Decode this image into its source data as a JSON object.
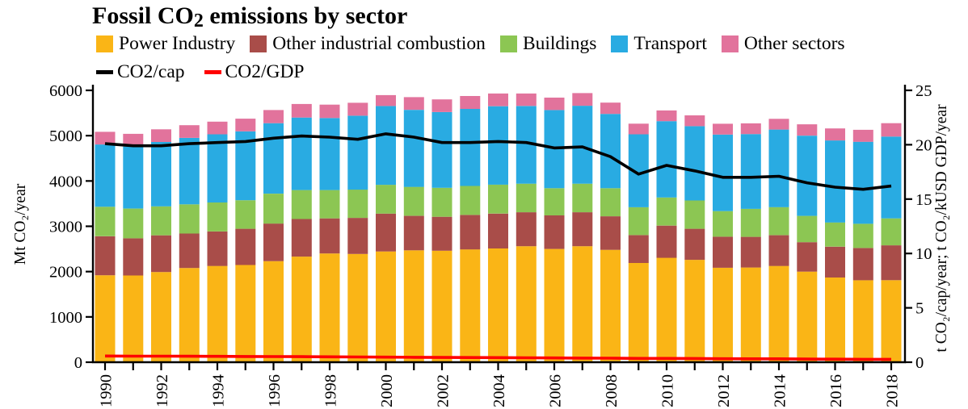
{
  "title": {
    "prefix": "Fossil CO",
    "sub": "2",
    "suffix": " emissions by sector"
  },
  "chart_data": {
    "type": "bar",
    "subtype": "stacked-bars-with-overlaid-lines",
    "title": "Fossil CO2 emissions by sector",
    "x": [
      1990,
      1991,
      1992,
      1993,
      1994,
      1995,
      1996,
      1997,
      1998,
      1999,
      2000,
      2001,
      2002,
      2003,
      2004,
      2005,
      2006,
      2007,
      2008,
      2009,
      2010,
      2011,
      2012,
      2013,
      2014,
      2015,
      2016,
      2017,
      2018
    ],
    "x_tick_label_step": 2,
    "bar_series": [
      {
        "name": "Power Industry",
        "color": "#FAB516",
        "values": [
          1920,
          1915,
          1990,
          2080,
          2125,
          2145,
          2230,
          2330,
          2400,
          2390,
          2445,
          2470,
          2460,
          2490,
          2510,
          2560,
          2500,
          2560,
          2480,
          2190,
          2305,
          2260,
          2085,
          2090,
          2125,
          2000,
          1870,
          1810,
          1810
        ]
      },
      {
        "name": "Other industrial combustion",
        "color": "#A94D49",
        "values": [
          860,
          820,
          810,
          760,
          760,
          800,
          830,
          830,
          775,
          795,
          835,
          760,
          750,
          760,
          770,
          750,
          740,
          750,
          740,
          615,
          710,
          685,
          685,
          677,
          678,
          650,
          680,
          710,
          770
        ]
      },
      {
        "name": "Buildings",
        "color": "#8CC653",
        "values": [
          650,
          655,
          640,
          645,
          640,
          630,
          660,
          640,
          625,
          625,
          635,
          640,
          640,
          640,
          640,
          630,
          600,
          630,
          620,
          615,
          620,
          625,
          565,
          618,
          620,
          580,
          535,
          535,
          595
        ]
      },
      {
        "name": "Transport",
        "color": "#29ABE2",
        "values": [
          1375,
          1370,
          1420,
          1465,
          1505,
          1520,
          1555,
          1600,
          1590,
          1630,
          1740,
          1700,
          1670,
          1700,
          1730,
          1715,
          1725,
          1720,
          1640,
          1610,
          1685,
          1640,
          1690,
          1650,
          1712,
          1770,
          1810,
          1810,
          1805
        ]
      },
      {
        "name": "Other sectors",
        "color": "#E2739C",
        "values": [
          280,
          280,
          280,
          280,
          280,
          280,
          290,
          300,
          295,
          285,
          240,
          280,
          280,
          285,
          280,
          275,
          275,
          280,
          250,
          235,
          237,
          238,
          238,
          236,
          236,
          250,
          265,
          265,
          295
        ]
      }
    ],
    "line_series": [
      {
        "name": "CO2/cap",
        "color": "#000000",
        "axis": "right",
        "values": [
          20.1,
          19.9,
          19.9,
          20.1,
          20.2,
          20.3,
          20.6,
          20.8,
          20.7,
          20.5,
          21.0,
          20.7,
          20.2,
          20.2,
          20.3,
          20.2,
          19.7,
          19.8,
          18.9,
          17.3,
          18.1,
          17.6,
          17.0,
          17.0,
          17.1,
          16.5,
          16.1,
          15.9,
          16.2
        ]
      },
      {
        "name": "CO2/GDP",
        "color": "#FF0000",
        "axis": "right",
        "values": [
          0.57,
          0.56,
          0.56,
          0.55,
          0.54,
          0.53,
          0.52,
          0.51,
          0.5,
          0.48,
          0.47,
          0.45,
          0.44,
          0.43,
          0.42,
          0.41,
          0.39,
          0.38,
          0.37,
          0.35,
          0.35,
          0.34,
          0.32,
          0.31,
          0.31,
          0.29,
          0.28,
          0.27,
          0.27
        ]
      }
    ],
    "left_axis": {
      "label": "Mt CO₂/year",
      "min": 0,
      "max": 6000,
      "step": 1000
    },
    "right_axis": {
      "label": "t CO₂/cap/year; t CO₂/kUSD GDP/year",
      "min": 0,
      "max": 25,
      "step": 5
    },
    "grid": false,
    "legend_position": "top"
  }
}
